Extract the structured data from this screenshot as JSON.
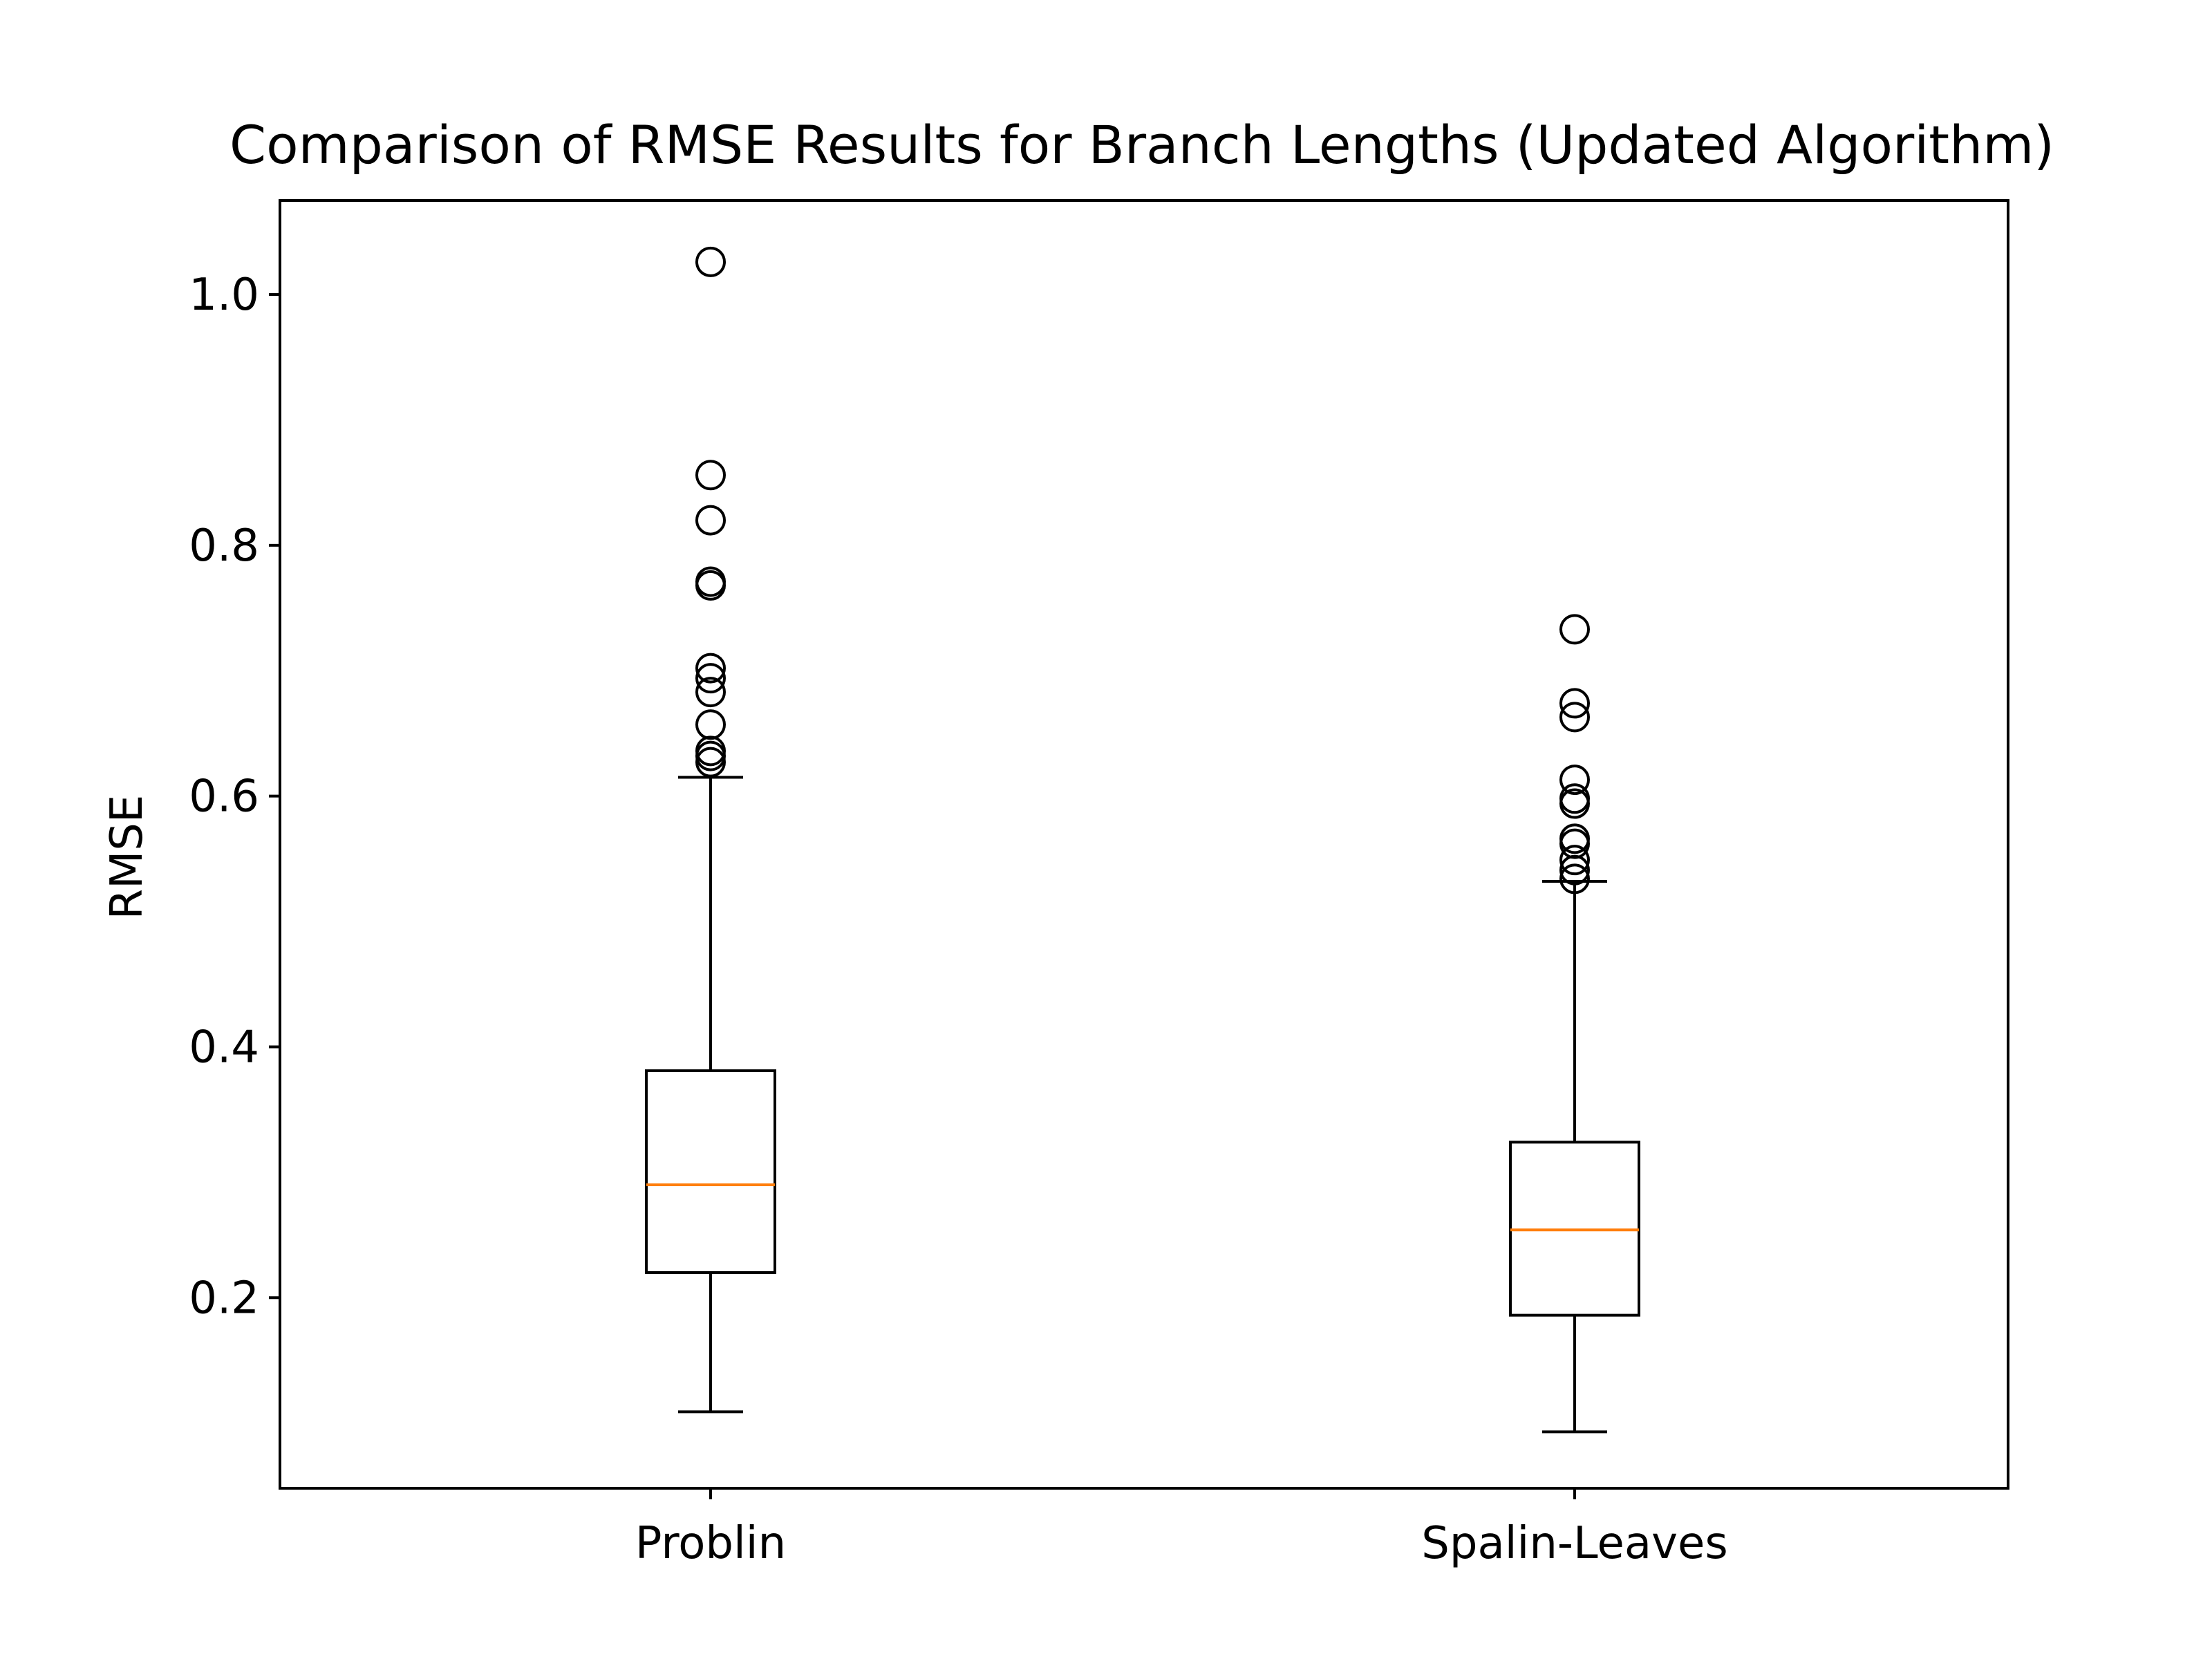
{
  "chart_data": {
    "type": "boxplot",
    "title": "Comparison of RMSE Results for Branch Lengths (Updated Algorithm)",
    "xlabel": "",
    "ylabel": "RMSE",
    "ylim": [
      0.048,
      1.075
    ],
    "yticks": [
      0.2,
      0.4,
      0.6,
      0.8,
      1.0
    ],
    "ytick_labels": [
      "0.2",
      "0.4",
      "0.6",
      "0.8",
      "1.0"
    ],
    "categories": [
      "Problin",
      "Spalin-Leaves"
    ],
    "grid": false,
    "legend": "none",
    "colors": {
      "box": "#000000",
      "median": "#ff7f0e",
      "whisker": "#000000",
      "flier": "#000000",
      "background": "#ffffff"
    },
    "boxes": [
      {
        "category": "Problin",
        "whisker_low": 0.109,
        "q1": 0.22,
        "median": 0.29,
        "q3": 0.381,
        "whisker_high": 0.615,
        "outliers": [
          0.627,
          0.632,
          0.636,
          0.657,
          0.683,
          0.694,
          0.702,
          0.768,
          0.771,
          0.82,
          0.856,
          1.026
        ]
      },
      {
        "category": "Spalin-Leaves",
        "whisker_low": 0.093,
        "q1": 0.186,
        "median": 0.254,
        "q3": 0.324,
        "whisker_high": 0.532,
        "outliers": [
          0.534,
          0.541,
          0.549,
          0.562,
          0.566,
          0.594,
          0.598,
          0.613,
          0.663,
          0.674,
          0.733
        ]
      }
    ]
  }
}
